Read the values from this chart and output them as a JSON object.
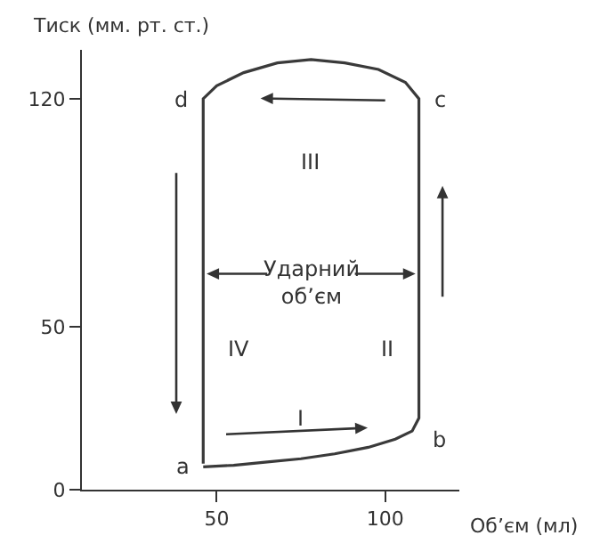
{
  "chart_data": {
    "type": "line",
    "xlabel": "Об’єм (мл)",
    "ylabel": "Тиск (мм. рт. ст.)",
    "x": [
      46,
      55,
      65,
      75,
      85,
      95,
      103,
      108,
      110,
      110,
      106,
      98,
      88,
      78,
      68,
      58,
      50,
      46,
      46
    ],
    "series": [
      {
        "color": "#3a3a3a",
        "values": [
          7,
          7.5,
          8.5,
          9.5,
          11,
          13,
          15.5,
          18,
          22,
          120,
          125,
          129,
          131,
          132,
          131,
          128,
          124,
          120,
          8
        ]
      }
    ],
    "xlim": [
      10,
      122
    ],
    "xticks": [
      50,
      100
    ],
    "ylim": [
      0,
      135
    ],
    "yticks": [
      0,
      50,
      120
    ],
    "marker": "none",
    "line_style": "solid",
    "annotations": [
      "a",
      "b",
      "c",
      "d",
      "I",
      "II",
      "III",
      "IV",
      "Ударний\nоб’єм"
    ]
  }
}
